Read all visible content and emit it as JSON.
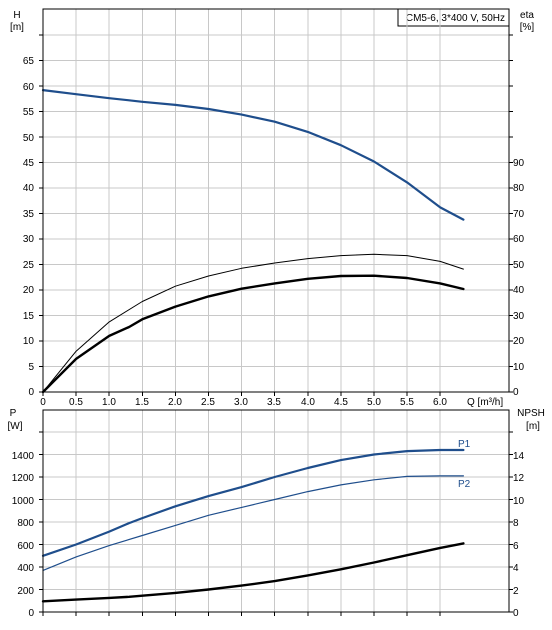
{
  "title_box": "CM5-6, 3*400 V, 50Hz",
  "colors": {
    "blue": "#1f4e8c",
    "black": "#000000",
    "grid": "#c8c8c8"
  },
  "top_panel": {
    "left_axis": {
      "label_line1": "H",
      "label_line2": "[m]",
      "ticks": [
        "0",
        "5",
        "10",
        "15",
        "20",
        "25",
        "30",
        "35",
        "40",
        "45",
        "50",
        "55",
        "60",
        "65"
      ]
    },
    "right_axis": {
      "label_line1": "eta",
      "label_line2": "[%]",
      "ticks": [
        "0",
        "10",
        "20",
        "30",
        "40",
        "50",
        "60",
        "70",
        "80",
        "90"
      ]
    },
    "x_axis": {
      "label": "Q [m³/h]",
      "ticks": [
        "0",
        "0.5",
        "1.0",
        "1.5",
        "2.0",
        "2.5",
        "3.0",
        "3.5",
        "4.0",
        "4.5",
        "5.0",
        "5.5",
        "6.0"
      ]
    }
  },
  "bottom_panel": {
    "left_axis": {
      "label_line1": "P",
      "label_line2": "[W]",
      "ticks": [
        "0",
        "200",
        "400",
        "600",
        "800",
        "1000",
        "1200",
        "1400"
      ]
    },
    "right_axis": {
      "label_line1": "NPSH",
      "label_line2": "[m]",
      "ticks": [
        "0",
        "2",
        "4",
        "6",
        "8",
        "10",
        "12",
        "14"
      ]
    },
    "series_labels": {
      "p1": "P1",
      "p2": "P2"
    }
  },
  "chart_data": [
    {
      "type": "line",
      "xlim": [
        0,
        6.4
      ],
      "ylim": [
        0,
        70
      ],
      "y2lim": [
        0,
        100
      ],
      "grid": true,
      "series": [
        {
          "key": "H",
          "axis": "left",
          "color": "#1f4e8c",
          "x": [
            0,
            0.5,
            1.0,
            1.3,
            1.5,
            2.0,
            2.5,
            3.0,
            3.5,
            4.0,
            4.5,
            5.0,
            5.5,
            6.0,
            6.35
          ],
          "y": [
            59.2,
            58.4,
            57.6,
            57.2,
            56.9,
            56.3,
            55.5,
            54.4,
            53.0,
            51.0,
            48.4,
            45.2,
            41.1,
            36.2,
            33.8
          ]
        },
        {
          "key": "eta_upper",
          "axis": "right",
          "color": "#000000",
          "x": [
            0,
            0.5,
            1.0,
            1.5,
            2.0,
            2.5,
            3.0,
            3.5,
            4.0,
            4.5,
            5.0,
            5.5,
            6.0,
            6.35
          ],
          "y": [
            0,
            16,
            27.5,
            35.5,
            41.5,
            45.5,
            48.5,
            50.6,
            52.3,
            53.5,
            54.0,
            53.5,
            51.2,
            48.2
          ]
        },
        {
          "key": "eta_lower",
          "axis": "right",
          "color": "#000000",
          "x": [
            0,
            0.5,
            1.0,
            1.3,
            1.5,
            2.0,
            2.5,
            3.0,
            3.5,
            4.0,
            4.5,
            5.0,
            5.5,
            6.0,
            6.35
          ],
          "y": [
            0,
            13,
            22,
            25.5,
            28.5,
            33.5,
            37.5,
            40.5,
            42.6,
            44.4,
            45.5,
            45.6,
            44.7,
            42.6,
            40.4
          ]
        }
      ]
    },
    {
      "type": "line",
      "xlim": [
        0,
        6.4
      ],
      "ylim": [
        0,
        1600
      ],
      "y2lim": [
        0,
        16
      ],
      "grid": true,
      "series": [
        {
          "key": "P1",
          "axis": "left",
          "color": "#1f4e8c",
          "x": [
            0,
            0.5,
            1.0,
            1.3,
            1.5,
            2.0,
            2.5,
            3.0,
            3.5,
            4.0,
            4.5,
            5.0,
            5.5,
            6.0,
            6.35
          ],
          "y": [
            500,
            600,
            715,
            790,
            835,
            940,
            1030,
            1110,
            1200,
            1280,
            1350,
            1400,
            1430,
            1440,
            1440
          ]
        },
        {
          "key": "P2",
          "axis": "left",
          "color": "#1f4e8c",
          "x": [
            0,
            0.5,
            1.0,
            1.5,
            2.0,
            2.5,
            3.0,
            3.5,
            4.0,
            4.5,
            5.0,
            5.5,
            6.0,
            6.35
          ],
          "y": [
            370,
            490,
            590,
            680,
            770,
            860,
            930,
            1000,
            1070,
            1130,
            1175,
            1205,
            1210,
            1210
          ]
        },
        {
          "key": "NPSH",
          "axis": "right",
          "color": "#000000",
          "x": [
            0,
            0.5,
            1.0,
            1.3,
            1.5,
            2.0,
            2.5,
            3.0,
            3.5,
            4.0,
            4.5,
            5.0,
            5.5,
            6.0,
            6.35
          ],
          "y": [
            0.95,
            1.1,
            1.25,
            1.35,
            1.45,
            1.7,
            2.0,
            2.35,
            2.75,
            3.25,
            3.8,
            4.4,
            5.05,
            5.7,
            6.1
          ]
        }
      ]
    }
  ]
}
